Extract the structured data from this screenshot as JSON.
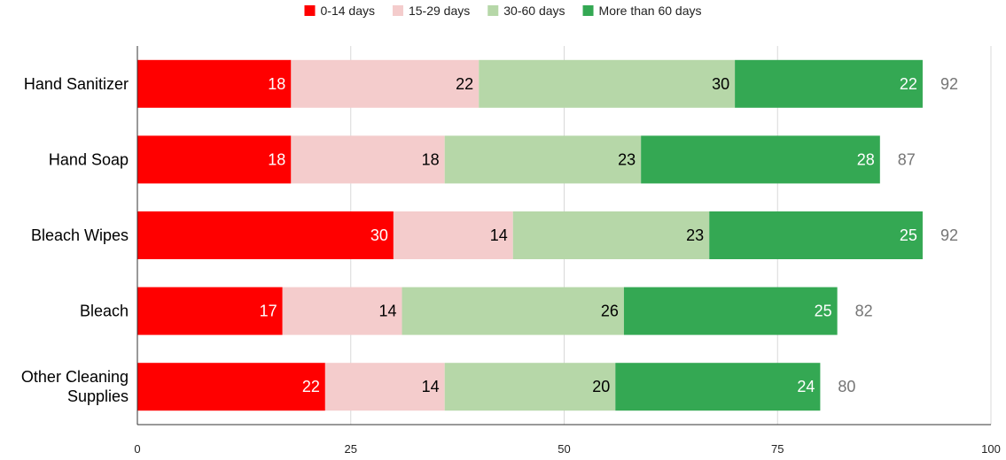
{
  "chart_data": {
    "type": "bar",
    "orientation": "horizontal",
    "stacked": true,
    "title": "",
    "xlabel": "",
    "ylabel": "",
    "xlim": [
      0,
      100
    ],
    "xticks": [
      0,
      25,
      50,
      75,
      100
    ],
    "grid": true,
    "legend_position": "top",
    "categories": [
      [
        "Hand Sanitizer"
      ],
      [
        "Hand Soap"
      ],
      [
        "Bleach Wipes"
      ],
      [
        "Bleach"
      ],
      [
        "Other Cleaning",
        "Supplies"
      ]
    ],
    "series": [
      {
        "name": "0-14 days",
        "color": "#ff0000",
        "label_color": "#ffffff",
        "values": [
          18,
          18,
          30,
          17,
          22
        ]
      },
      {
        "name": "15-29 days",
        "color": "#f4cccc",
        "label_color": "#000000",
        "values": [
          22,
          18,
          14,
          14,
          14
        ]
      },
      {
        "name": "30-60 days",
        "color": "#b6d7a8",
        "label_color": "#000000",
        "values": [
          30,
          23,
          23,
          26,
          20
        ]
      },
      {
        "name": "More than 60 days",
        "color": "#34a853",
        "label_color": "#ffffff",
        "values": [
          22,
          28,
          25,
          25,
          24
        ]
      }
    ],
    "totals": [
      92,
      87,
      92,
      82,
      80
    ]
  }
}
